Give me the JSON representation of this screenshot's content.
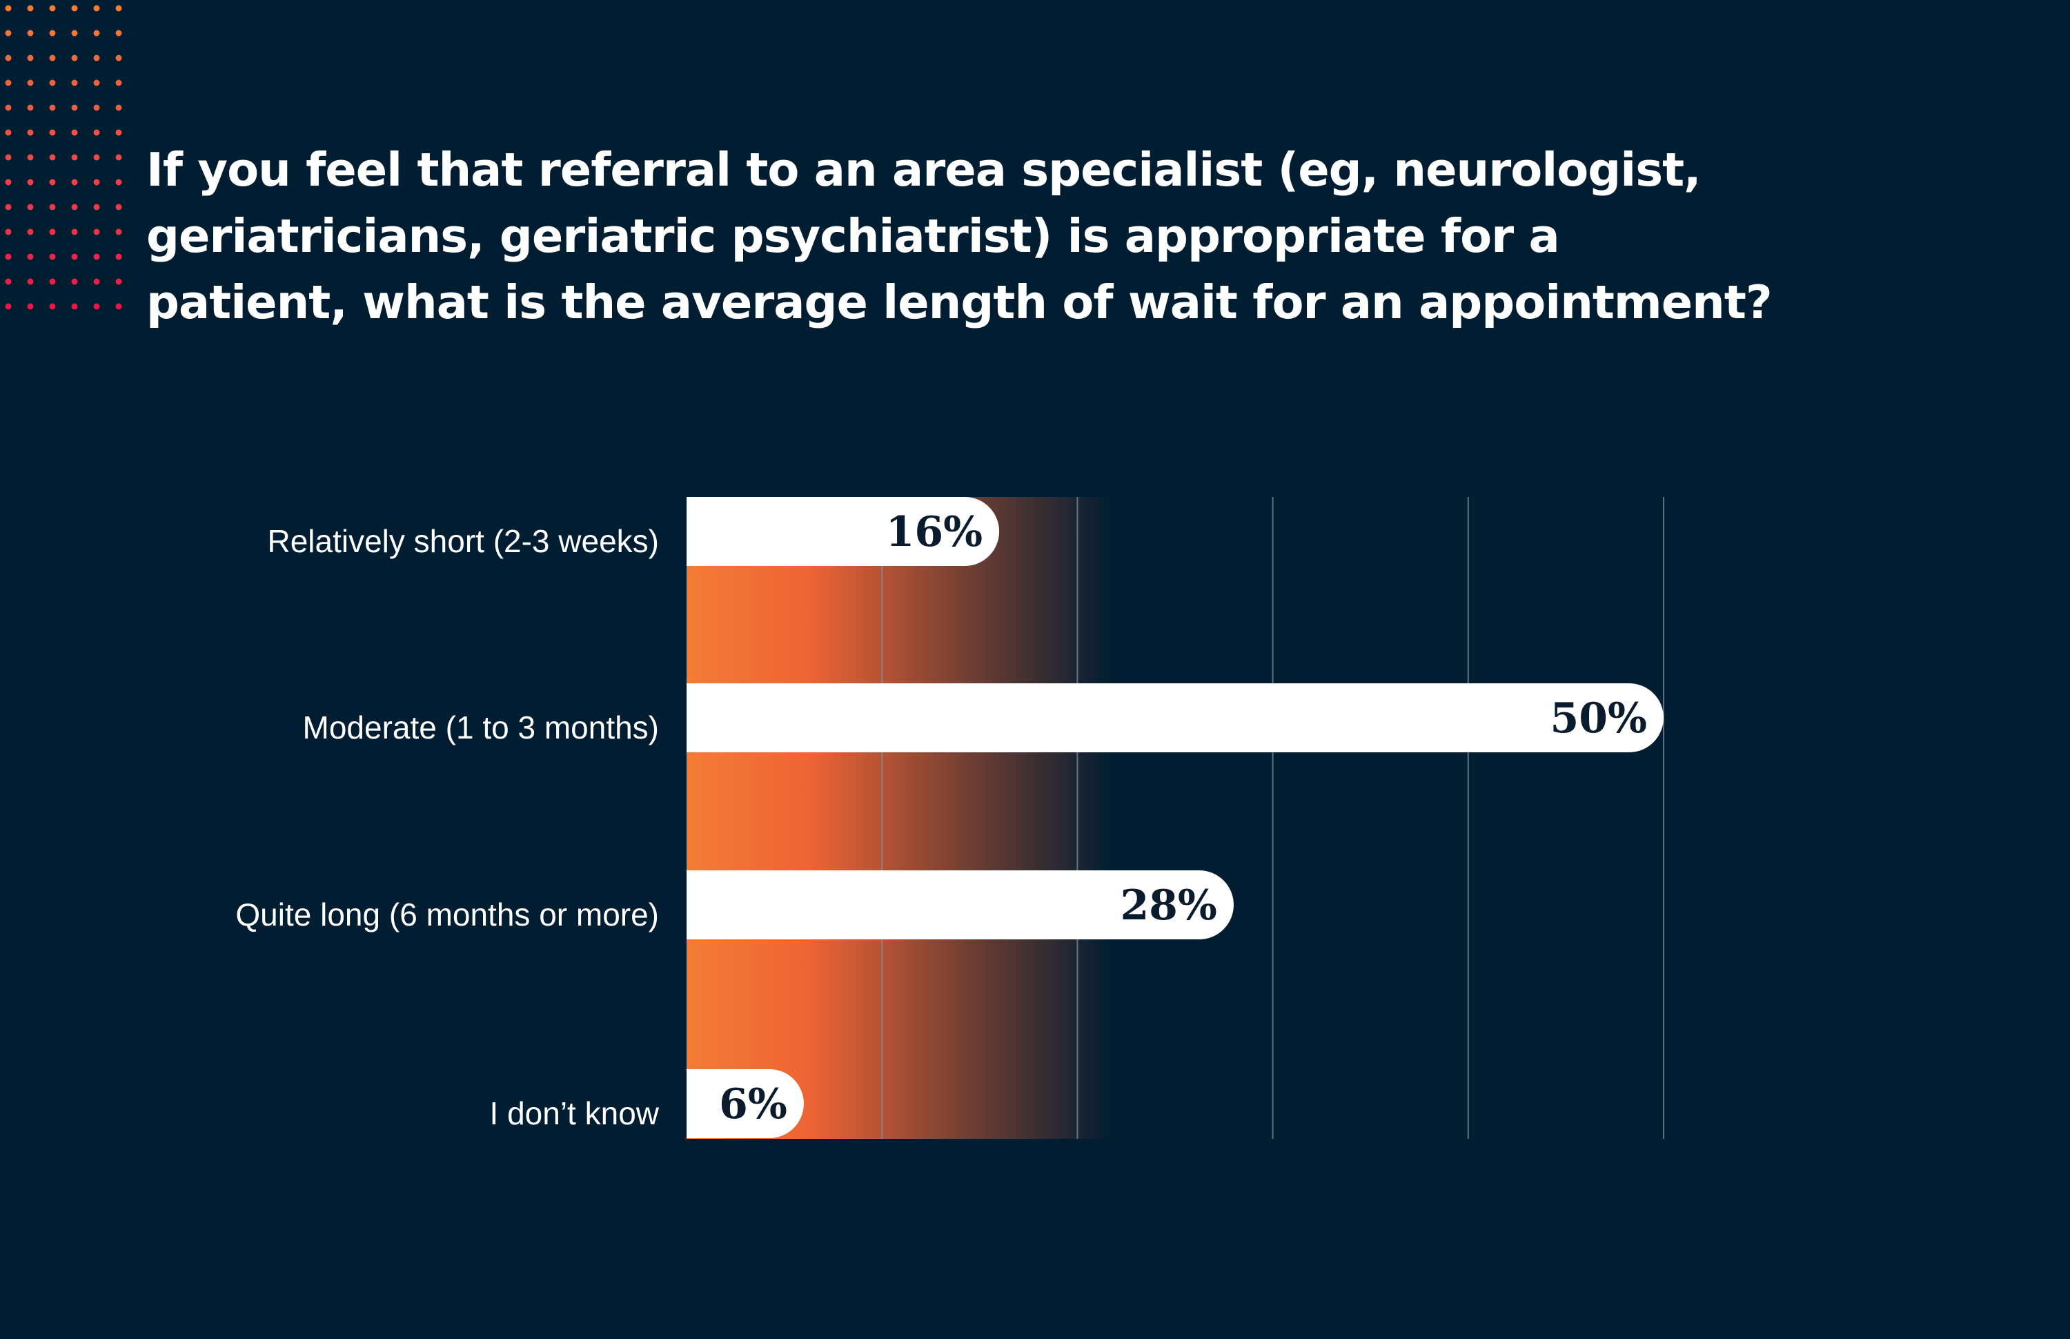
{
  "colors": {
    "background": "#011d32",
    "bar": "#ffffff",
    "gradient_start": "#f47c36",
    "gradient_mid": "#ee6434",
    "gradient_end": "#011d32",
    "dots_top": "#f47c36",
    "dots_bottom": "#e8164c",
    "value_text": "#0b1b2e"
  },
  "decoration": {
    "icon": "dot-grid-icon"
  },
  "chart_data": {
    "type": "bar",
    "orientation": "horizontal",
    "title": "If you feel that referral to an area specialist (eg, neurologist, geriatricians, geriatric psychiatrist) is appropriate for a patient, what is the average length of wait for an appointment?",
    "title_lines": [
      "If you feel that referral to an area specialist (eg, neurologist,",
      "geriatricians, geriatric psychiatrist) is appropriate for a",
      "patient, what is the average length of wait for an appointment?"
    ],
    "categories": [
      "Relatively short (2-3 weeks)",
      "Moderate (1 to 3 months)",
      "Quite long (6 months or more)",
      "I don’t know"
    ],
    "values": [
      16,
      50,
      28,
      6
    ],
    "value_labels": [
      "16%",
      "50%",
      "28%",
      "6%"
    ],
    "xlim": [
      0,
      50
    ],
    "unit": "%",
    "gridlines": [
      0,
      10,
      20,
      30,
      40,
      50
    ],
    "grid": true,
    "legend": "none"
  }
}
